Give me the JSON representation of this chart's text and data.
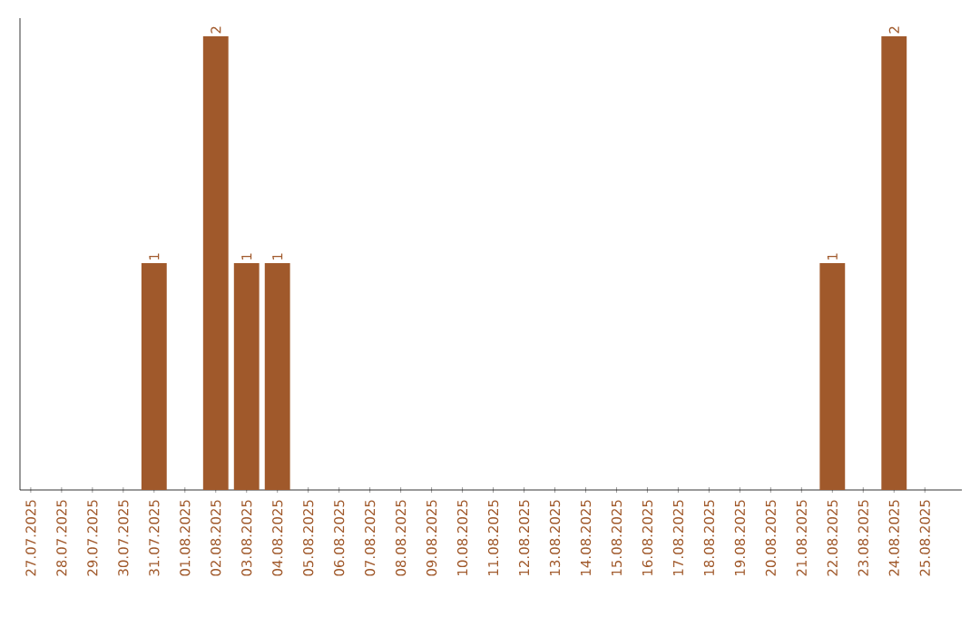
{
  "chart_data": {
    "type": "bar",
    "color": "#a0592b",
    "categories": [
      "27.07.2025",
      "28.07.2025",
      "29.07.2025",
      "30.07.2025",
      "31.07.2025",
      "01.08.2025",
      "02.08.2025",
      "03.08.2025",
      "04.08.2025",
      "05.08.2025",
      "06.08.2025",
      "07.08.2025",
      "08.08.2025",
      "09.08.2025",
      "10.08.2025",
      "11.08.2025",
      "12.08.2025",
      "13.08.2025",
      "14.08.2025",
      "15.08.2025",
      "16.08.2025",
      "17.08.2025",
      "18.08.2025",
      "19.08.2025",
      "20.08.2025",
      "21.08.2025",
      "22.08.2025",
      "23.08.2025",
      "24.08.2025",
      "25.08.2025"
    ],
    "values": [
      0,
      0,
      0,
      0,
      1,
      0,
      2,
      1,
      1,
      0,
      0,
      0,
      0,
      0,
      0,
      0,
      0,
      0,
      0,
      0,
      0,
      0,
      0,
      0,
      0,
      0,
      1,
      0,
      2,
      0
    ],
    "value_labels": [
      null,
      null,
      null,
      null,
      "1",
      null,
      "2",
      "1",
      "1",
      null,
      null,
      null,
      null,
      null,
      null,
      null,
      null,
      null,
      null,
      null,
      null,
      null,
      null,
      null,
      null,
      null,
      "1",
      null,
      "2",
      null
    ]
  }
}
